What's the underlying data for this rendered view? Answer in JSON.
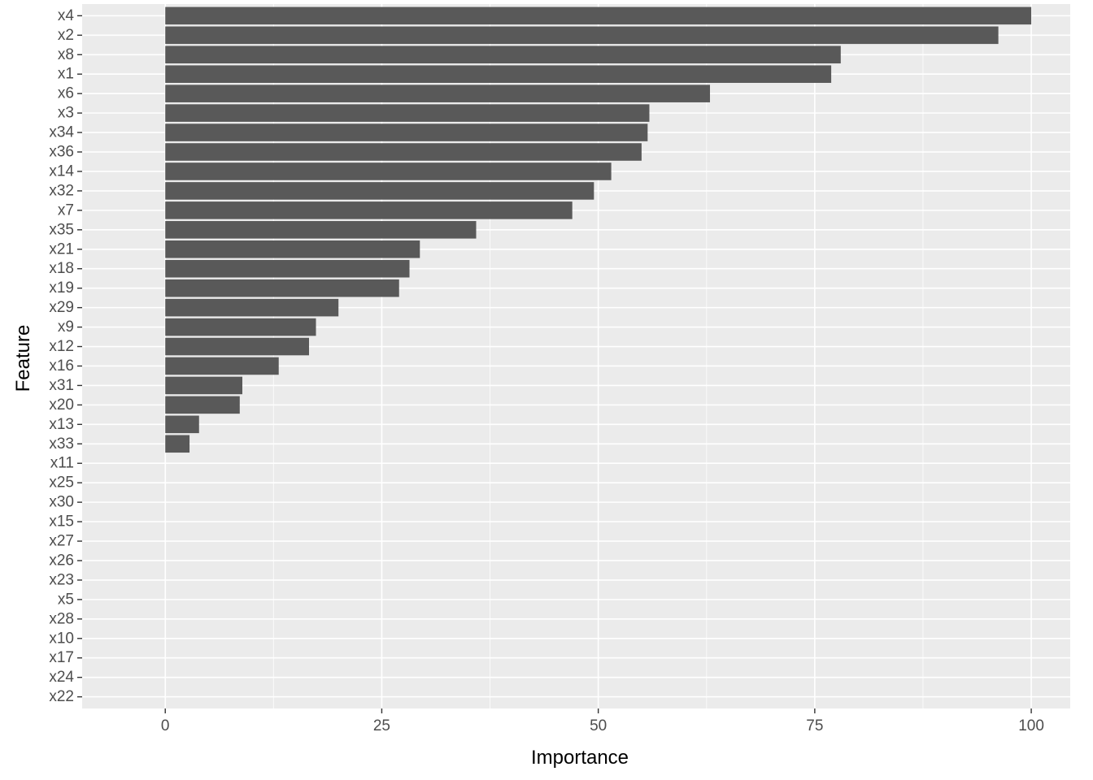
{
  "chart_data": {
    "type": "bar",
    "orientation": "horizontal",
    "xlabel": "Importance",
    "ylabel": "Feature",
    "xlim": [
      -9.6,
      104.5
    ],
    "x_ticks": [
      0,
      25,
      50,
      75,
      100
    ],
    "grid": true,
    "colors": {
      "panel": "#ebebeb",
      "bar": "#595959",
      "grid": "#ffffff",
      "tick_text": "#4d4d4d"
    },
    "categories": [
      "x4",
      "x2",
      "x8",
      "x1",
      "x6",
      "x3",
      "x34",
      "x36",
      "x14",
      "x32",
      "x7",
      "x35",
      "x21",
      "x18",
      "x19",
      "x29",
      "x9",
      "x12",
      "x16",
      "x31",
      "x20",
      "x13",
      "x33",
      "x11",
      "x25",
      "x30",
      "x15",
      "x27",
      "x26",
      "x23",
      "x5",
      "x28",
      "x10",
      "x17",
      "x24",
      "x22"
    ],
    "values": [
      100,
      96.2,
      78,
      76.9,
      62.9,
      55.9,
      55.7,
      55,
      51.5,
      49.5,
      47,
      35.9,
      29.4,
      28.2,
      27,
      20,
      17.4,
      16.6,
      13.1,
      8.9,
      8.6,
      3.9,
      2.8,
      0,
      0,
      0,
      0,
      0,
      0,
      0,
      0,
      0,
      0,
      0,
      0,
      0
    ]
  }
}
